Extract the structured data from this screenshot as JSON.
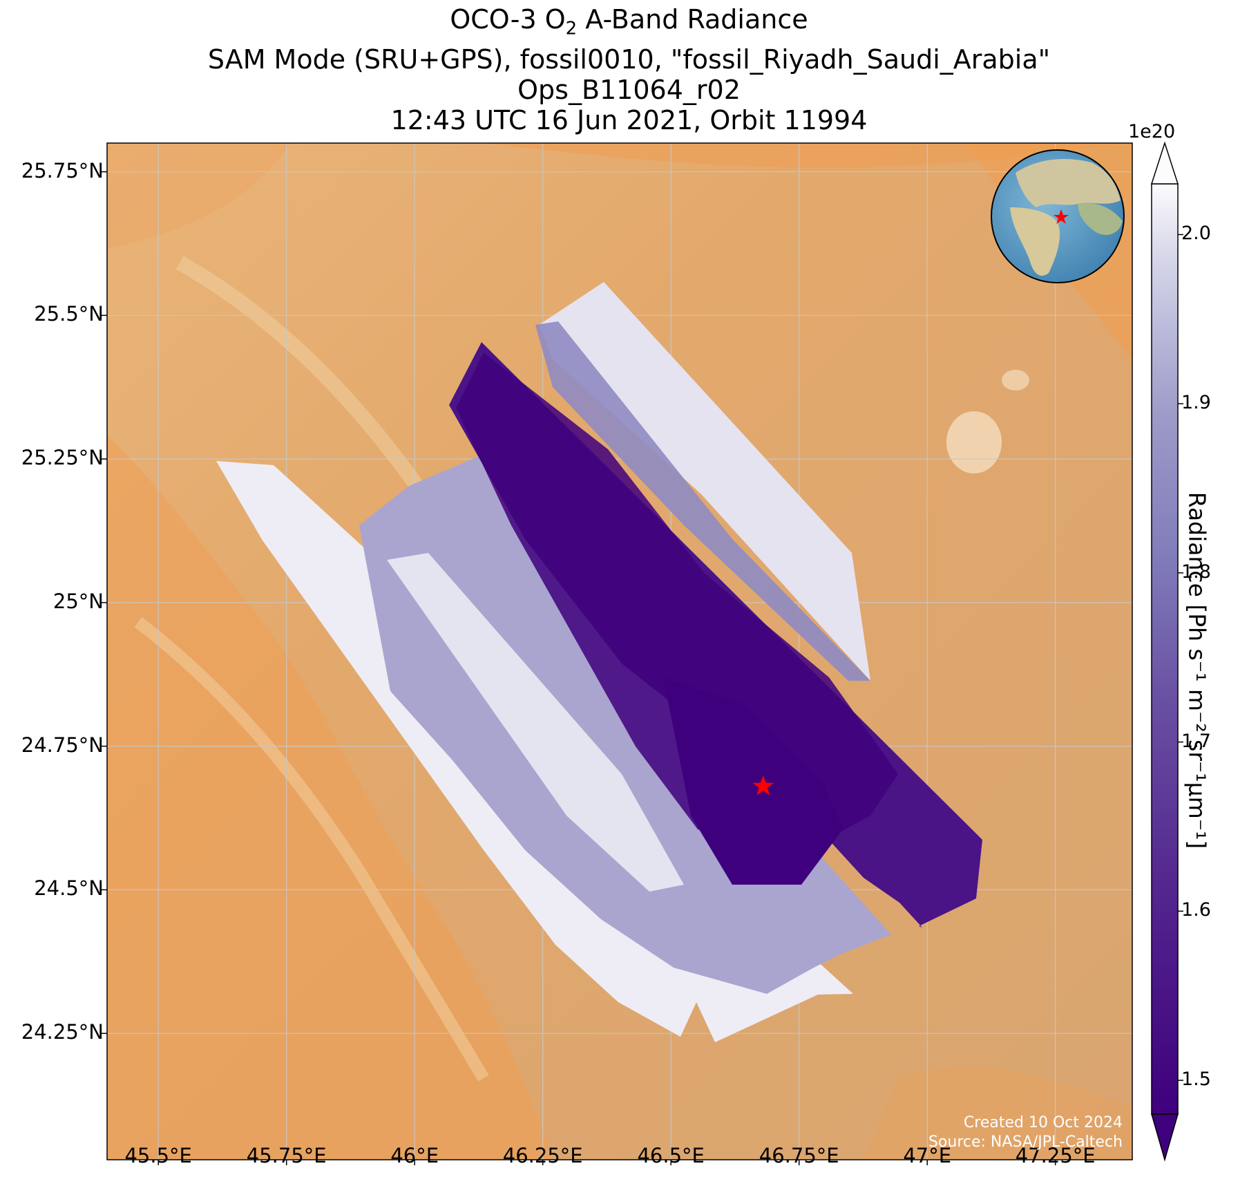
{
  "title": {
    "line1_prefix": "OCO-3 O",
    "line1_sub": "2",
    "line1_suffix": " A-Band Radiance",
    "line2": "SAM Mode (SRU+GPS), fossil0010, \"fossil_Riyadh_Saudi_Arabia\"",
    "line3": "Ops_B11064_r02",
    "line4": "12:43 UTC 16 Jun 2021, Orbit 11994"
  },
  "axes": {
    "lat_ticks": [
      "25.75°N",
      "25.5°N",
      "25.25°N",
      "25°N",
      "24.75°N",
      "24.5°N",
      "24.25°N"
    ],
    "lon_ticks": [
      "45.5°E",
      "45.75°E",
      "46°E",
      "46.25°E",
      "46.5°E",
      "46.75°E",
      "47°E",
      "47.25°E"
    ],
    "lat_range": [
      24.03,
      25.8
    ],
    "lon_range": [
      45.4,
      47.4
    ],
    "grid": true
  },
  "colorbar": {
    "exponent": "1e20",
    "ticks": [
      "2.0",
      "1.9",
      "1.8",
      "1.7",
      "1.6",
      "1.5"
    ],
    "tick_values": [
      2.0,
      1.9,
      1.8,
      1.7,
      1.6,
      1.5
    ],
    "range": [
      1.48,
      2.03
    ],
    "label": "Radiance [Ph s⁻¹ m⁻² sr⁻¹μm⁻¹]",
    "colormap": "Purples_r",
    "extend": "both"
  },
  "target": {
    "lon": 46.68,
    "lat": 24.68,
    "marker": "red-star",
    "color": "#ff0000"
  },
  "swaths": [
    {
      "description": "westernmost swath",
      "mean_radiance": 1.92
    },
    {
      "description": "west-central swath",
      "mean_radiance": 1.78
    },
    {
      "description": "east-central swath",
      "mean_radiance": 1.58
    },
    {
      "description": "easternmost swath",
      "mean_radiance": 1.85
    }
  ],
  "credits": {
    "created": "Created 10 Oct 2024",
    "source": "Source: NASA/JPL-Caltech"
  },
  "inset": {
    "type": "globe",
    "marker_color": "#ff0000"
  },
  "colors": {
    "desert": "#e6a866",
    "sand_dark": "#ee9a4d",
    "star": "#ff0000"
  }
}
